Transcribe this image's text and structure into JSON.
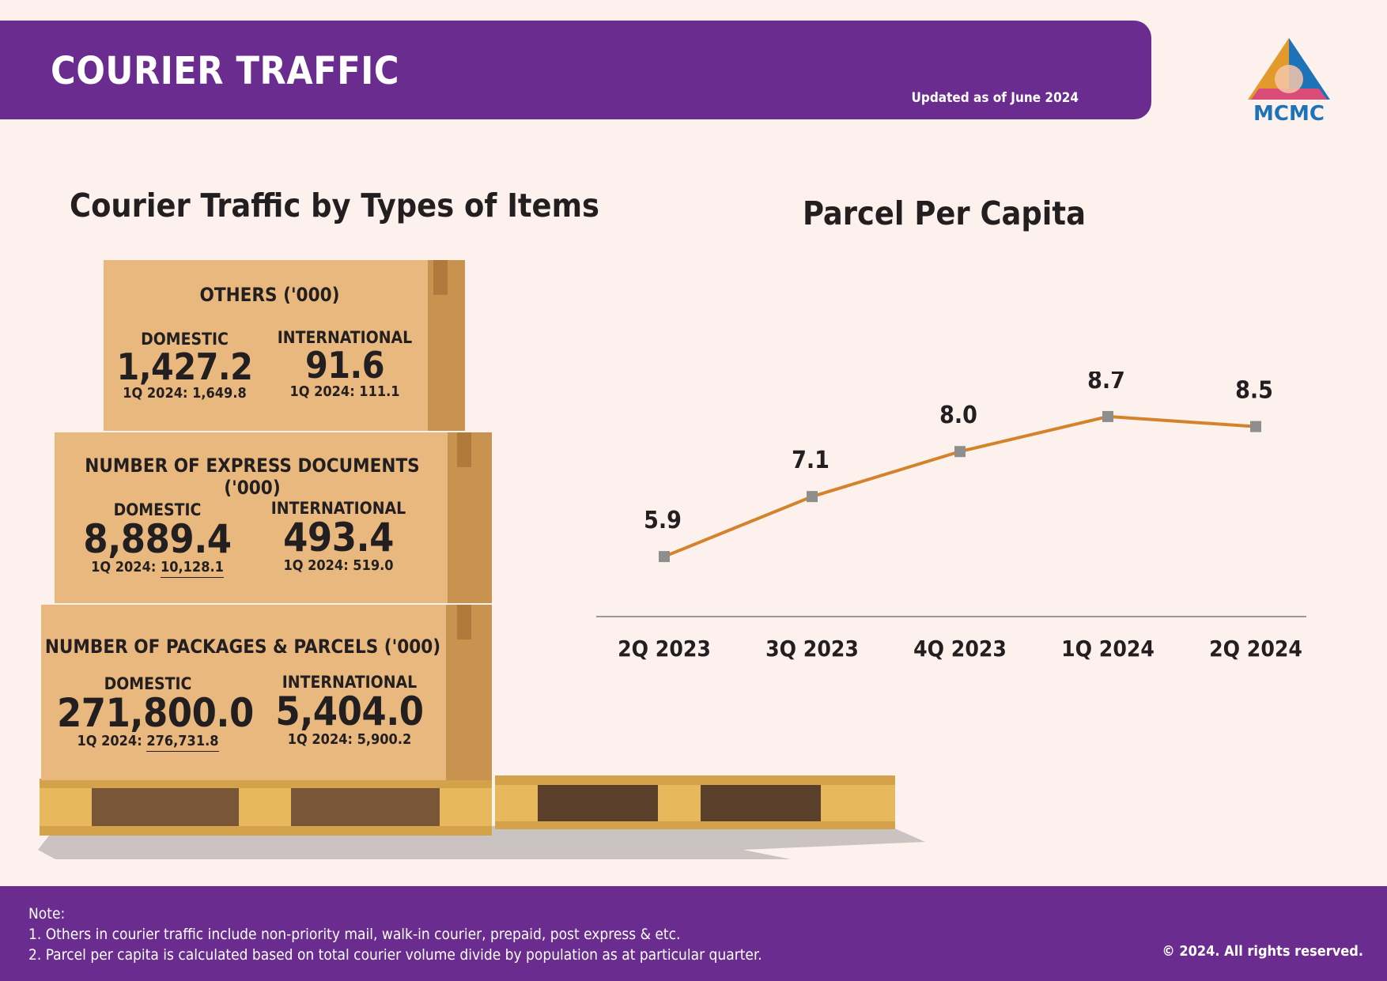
{
  "header": {
    "title": "COURIER TRAFFIC",
    "updated": "Updated as of June 2024",
    "logo_text": "MCMC"
  },
  "left_section": {
    "title": "Courier Traffic by Types of Items",
    "boxes": [
      {
        "title": "OTHERS ('000)",
        "domestic": {
          "label": "DOMESTIC",
          "value": "1,427.2",
          "prev": "1Q 2024: 1,649.8"
        },
        "international": {
          "label": "INTERNATIONAL",
          "value": "91.6",
          "prev": "1Q 2024:  111.1"
        }
      },
      {
        "title": "NUMBER OF EXPRESS DOCUMENTS ('000)",
        "domestic": {
          "label": "DOMESTIC",
          "value": "8,889.4",
          "prev_label": "1Q 2024: ",
          "prev_value": "10,128.1"
        },
        "international": {
          "label": "INTERNATIONAL",
          "value": "493.4",
          "prev": "1Q 2024: 519.0"
        }
      },
      {
        "title": "NUMBER OF PACKAGES & PARCELS ('000)",
        "domestic": {
          "label": "DOMESTIC",
          "value": "271,800.0",
          "prev_label": "1Q 2024: ",
          "prev_value": "276,731.8"
        },
        "international": {
          "label": "INTERNATIONAL",
          "value": "5,404.0",
          "prev": "1Q 2024: 5,900.2"
        }
      }
    ]
  },
  "chart_data": {
    "type": "line",
    "title": "Parcel Per Capita",
    "categories": [
      "2Q 2023",
      "3Q 2023",
      "4Q 2023",
      "1Q 2024",
      "2Q 2024"
    ],
    "values": [
      5.9,
      7.1,
      8.0,
      8.7,
      8.5
    ],
    "data_labels": [
      "5.9",
      "7.1",
      "8.0",
      "8.7",
      "8.5"
    ],
    "ylim": [
      4.7,
      9.6
    ],
    "line_color": "#d4832c",
    "marker_color": "#8e8e8e",
    "axis_color": "#9a9a9a",
    "grid": false
  },
  "footer": {
    "note_title": "Note:",
    "notes": [
      "1.  Others in courier traffic include non-priority mail, walk-in courier, prepaid, post express & etc.",
      "2. Parcel per capita is calculated based on total courier volume divide by population as at particular quarter."
    ],
    "copyright": "© 2024. All rights reserved."
  },
  "colors": {
    "brand_purple": "#6a2c8e",
    "background": "#fdf1ed",
    "box_front": "#e8b87e",
    "box_side": "#c8934f",
    "pallet": "#e7b95c"
  }
}
